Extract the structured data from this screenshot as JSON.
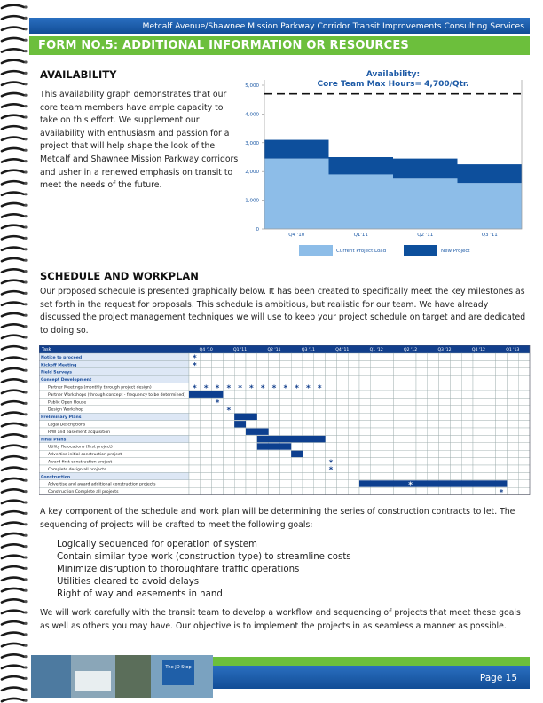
{
  "header": {
    "title": "Metcalf Avenue/Shawnee Mission Parkway Corridor Transit Improvements Consulting Services",
    "form_title": "FORM NO.5: ADDITIONAL INFORMATION OR RESOURCES"
  },
  "availability": {
    "heading": "AVAILABILITY",
    "text": "This availability graph demonstrates that our core team members have ample capacity to take on this effort. We supplement our availability with enthusiasm and passion for a project that will help shape the look of the Metcalf and Shawnee Mission Parkway corridors and usher in a renewed emphasis on transit to meet the needs of the future."
  },
  "chart_data": {
    "type": "bar",
    "stacked": true,
    "title": "Availability:",
    "subtitle": "Core Team Max Hours= 4,700/Qtr.",
    "categories": [
      "Q4 '10",
      "Q1'11",
      "Q2 '11",
      "Q3 '11"
    ],
    "series": [
      {
        "name": "Current Project Load",
        "color": "#8dbde8",
        "values": [
          2450,
          1900,
          1750,
          1600
        ]
      },
      {
        "name": "New Project",
        "color": "#0d4f9c",
        "values": [
          650,
          600,
          700,
          650
        ]
      }
    ],
    "reference_line": 4700,
    "ylim": [
      0,
      5000
    ],
    "yticks": [
      0,
      {
        "value": 1000,
        "label": "1,000"
      },
      {
        "value": 2000,
        "label": "2,000"
      },
      {
        "value": 3000,
        "label": "3,000"
      },
      {
        "value": 4000,
        "label": "4,000"
      },
      {
        "value": 5000,
        "label": "5,000"
      }
    ],
    "grid": false,
    "legend": "bottom"
  },
  "schedule": {
    "heading": "SCHEDULE AND WORKPLAN",
    "intro": "Our proposed schedule is presented graphically below. It has been created to specifically meet the key milestones as set forth in the request for proposals. This schedule is ambitious, but realistic for our team. We have already discussed the project management techniques we will use to keep your project schedule on target and are dedicated to doing so.",
    "task_header": "Task",
    "quarters": [
      "Q4 '10",
      "Q1 '11",
      "Q2 '11",
      "Q3 '11",
      "Q4 '11",
      "Q1 '12",
      "Q2 '12",
      "Q3 '12",
      "Q4 '12",
      "Q1 '13"
    ],
    "milestone_symbol": "*",
    "rows": [
      {
        "task": "Notice to proceed",
        "group": true,
        "milestones": [
          0
        ]
      },
      {
        "task": "Kickoff Meeting",
        "group": true,
        "milestones": [
          0
        ]
      },
      {
        "task": "Field Surveys",
        "group": true
      },
      {
        "task": "Concept Development",
        "group": true
      },
      {
        "task": "Partner Meetings (monthly through project design)",
        "milestones": [
          0,
          1,
          2,
          3,
          4,
          5,
          6,
          7,
          8,
          9,
          10,
          11
        ]
      },
      {
        "task": "Partner Workshops (through concept - frequency to be determined)",
        "bar": [
          0,
          2
        ]
      },
      {
        "task": "Public Open House",
        "milestones": [
          2
        ]
      },
      {
        "task": "Design Workshop",
        "milestones": [
          3
        ]
      },
      {
        "task": "Preliminary Plans",
        "group": true,
        "bar": [
          4,
          5
        ]
      },
      {
        "task": "Legal Descriptions",
        "bar": [
          4,
          4
        ]
      },
      {
        "task": "R/W and easement acquisition",
        "bar": [
          5,
          6
        ]
      },
      {
        "task": "Final Plans",
        "group": true,
        "bar": [
          6,
          11
        ]
      },
      {
        "task": "Utility Relocations (first project)",
        "bar": [
          6,
          8
        ]
      },
      {
        "task": "Advertise initial construction project",
        "bar": [
          9,
          9
        ]
      },
      {
        "task": "Award first construction project",
        "milestones": [
          12
        ]
      },
      {
        "task": "Complete design all projects",
        "milestones": [
          12
        ]
      },
      {
        "task": "Construction",
        "group": true
      },
      {
        "task": "Advertise and award additional construction projects",
        "bar": [
          15,
          27
        ],
        "milestones": [
          19
        ]
      },
      {
        "task": "Construction Complete all projects",
        "milestones": [
          27
        ]
      }
    ]
  },
  "goals": {
    "intro": "A key component of the schedule and work plan will be determining the series of construction contracts to let. The sequencing of projects will be crafted to meet the following goals:",
    "items": [
      "Logically sequenced for operation of system",
      "Contain similar type work (construction type) to streamline costs",
      "Minimize disruption to thoroughfare traffic operations",
      "Utilities cleared to avoid delays",
      "Right of way and easements in hand"
    ]
  },
  "closing": "We will work carefully with the transit team to develop a workflow and sequencing of projects that meet these goals as well as others you may have. Our objective is to implement the projects in as seamless a manner as possible.",
  "footer": {
    "sign": "The JO Stop",
    "page": "Page 15"
  }
}
